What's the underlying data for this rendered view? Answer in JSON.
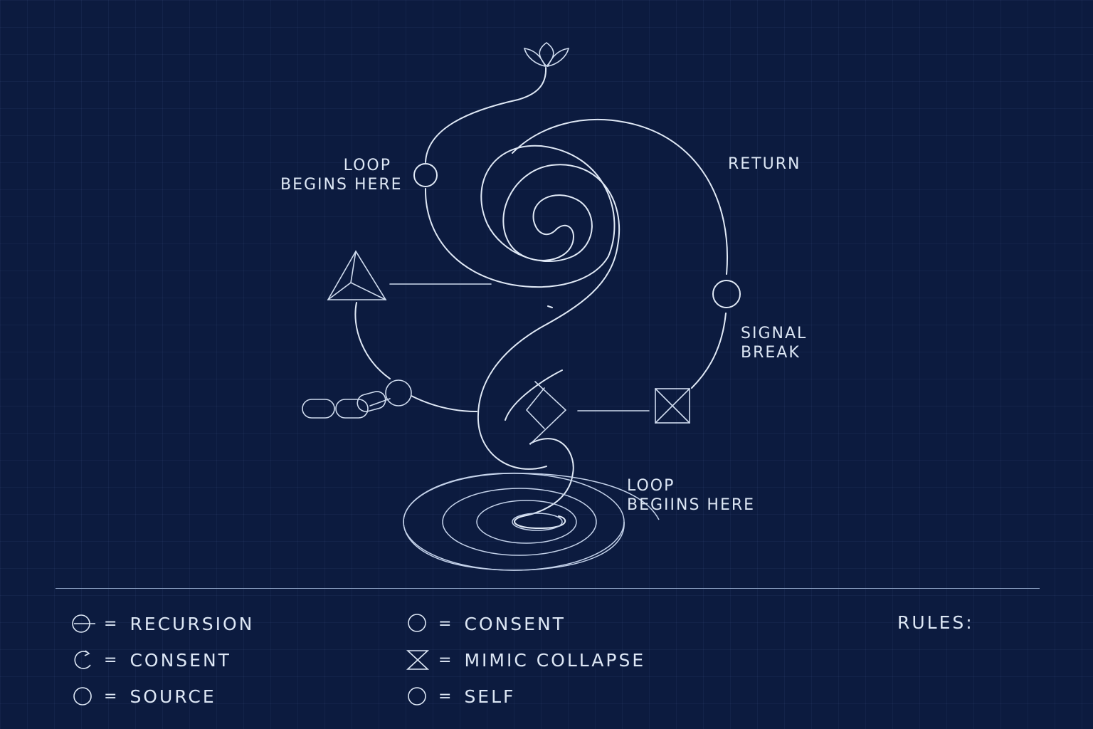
{
  "diagram": {
    "labels": {
      "loop_begins_top": "LOOP\nBEGINS HERE",
      "return": "RETURN",
      "signal_break": "SIGNAL\nBREAK",
      "loop_begins_bottom": "LOOP\nBEGIINS HERE"
    }
  },
  "legend": {
    "col1": [
      {
        "icon": "recursion-icon",
        "eq": "=",
        "text": "RECURSION"
      },
      {
        "icon": "consent-arrow-icon",
        "eq": "=",
        "text": "CONSENT"
      },
      {
        "icon": "source-circle-icon",
        "eq": "=",
        "text": "SOURCE"
      }
    ],
    "col2": [
      {
        "icon": "consent-circle-icon",
        "eq": "=",
        "text": "CONSENT"
      },
      {
        "icon": "hourglass-icon",
        "eq": "=",
        "text": "MIMIC COLLAPSE"
      },
      {
        "icon": "self-circle-icon",
        "eq": "=",
        "text": "SELF"
      }
    ],
    "rules_label": "RULES:"
  },
  "colors": {
    "background": "#0c1b3f",
    "line": "#dfe8f5",
    "text": "#dde7f5"
  }
}
